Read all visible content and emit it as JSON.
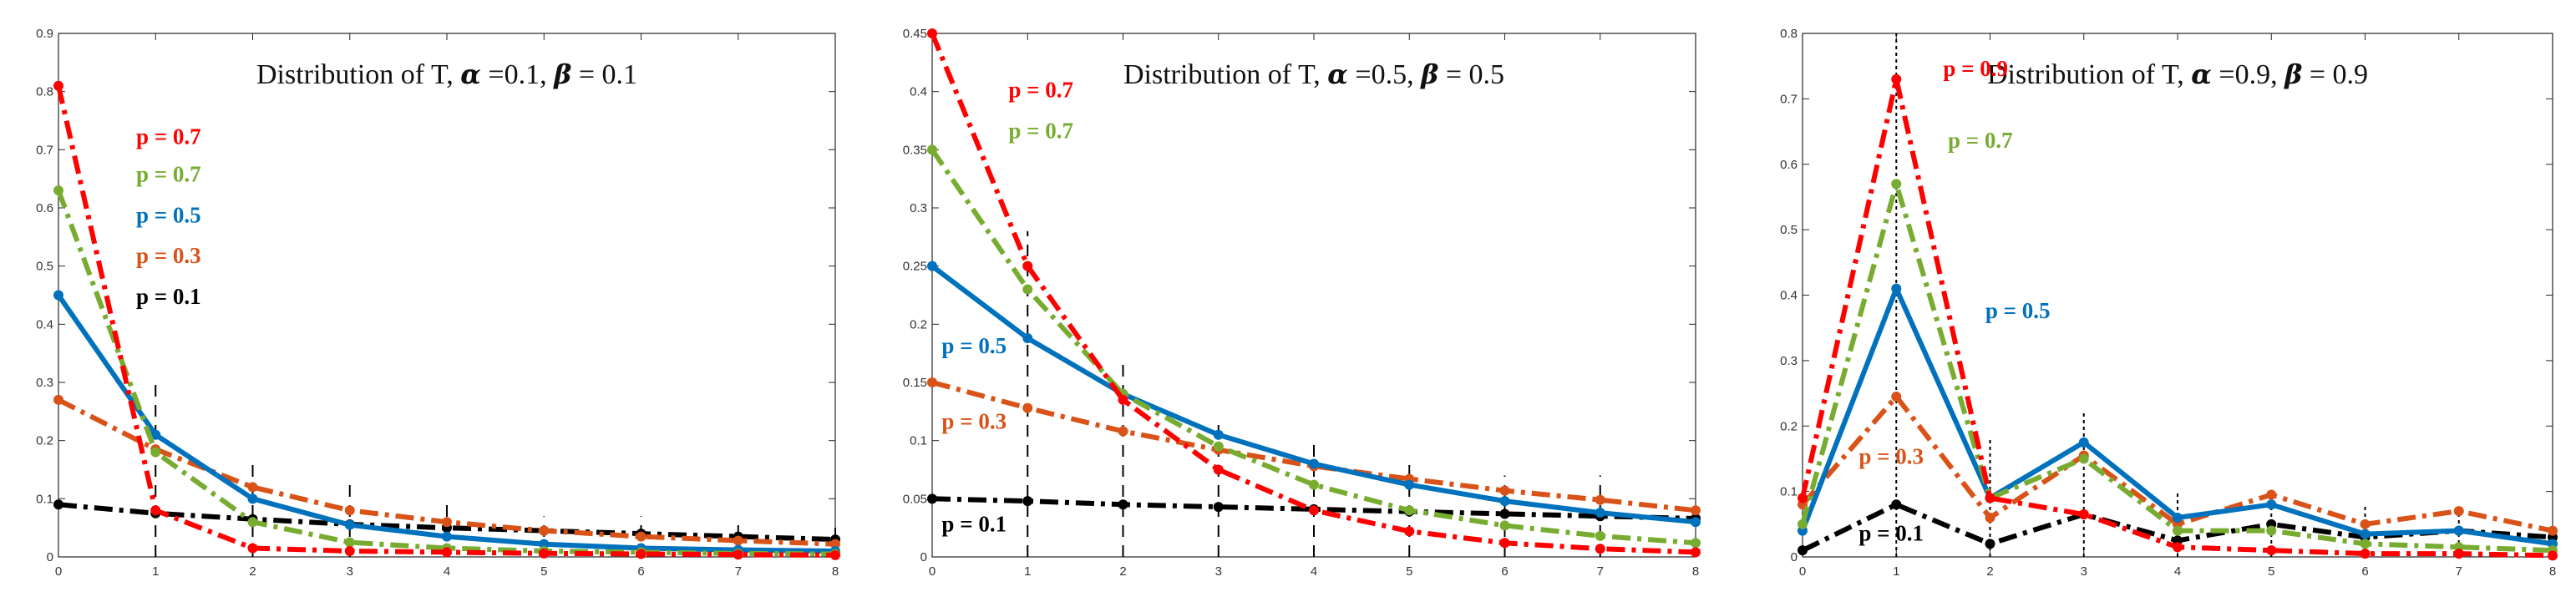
{
  "chart_data": [
    {
      "type": "line",
      "title": {
        "prefix": "Distribution of T, ",
        "alpha_symbol": "α",
        "alpha_text": " =0.1, ",
        "beta_symbol": "β",
        "beta_text": " = 0.1"
      },
      "xlabel": "",
      "ylabel": "",
      "xlim": [
        0,
        8
      ],
      "ylim": [
        0,
        0.9
      ],
      "x": [
        0,
        1,
        2,
        3,
        4,
        5,
        6,
        7,
        8
      ],
      "xticks": [
        "0",
        "1",
        "2",
        "3",
        "4",
        "5",
        "6",
        "7",
        "8"
      ],
      "yticks": [
        "0",
        "0.1",
        "0.2",
        "0.3",
        "0.4",
        "0.5",
        "0.6",
        "0.7",
        "0.8",
        "0.9"
      ],
      "ytick_values": [
        0,
        0.1,
        0.2,
        0.3,
        0.4,
        0.5,
        0.6,
        0.7,
        0.8,
        0.9
      ],
      "grid": false,
      "series": [
        {
          "name": "p = 0.1",
          "color": "#000000",
          "style": "dashdot",
          "values": [
            0.09,
            0.075,
            0.065,
            0.056,
            0.05,
            0.045,
            0.04,
            0.035,
            0.03
          ]
        },
        {
          "name": "p = 0.3",
          "color": "#D95319",
          "style": "dashdot",
          "values": [
            0.27,
            0.185,
            0.12,
            0.08,
            0.06,
            0.045,
            0.035,
            0.028,
            0.022
          ]
        },
        {
          "name": "p = 0.5",
          "color": "#0072BD",
          "style": "solid",
          "values": [
            0.45,
            0.21,
            0.1,
            0.055,
            0.035,
            0.022,
            0.015,
            0.012,
            0.01
          ]
        },
        {
          "name": "p = 0.7",
          "color": "#77AC30",
          "style": "dashdot",
          "values": [
            0.63,
            0.18,
            0.06,
            0.025,
            0.015,
            0.01,
            0.008,
            0.006,
            0.005
          ]
        },
        {
          "name": "p = 0.7",
          "color": "#FF0000",
          "style": "dashdot",
          "values": [
            0.81,
            0.08,
            0.015,
            0.01,
            0.008,
            0.006,
            0.005,
            0.004,
            0.003
          ]
        }
      ],
      "annotations": [
        {
          "text": "p = 0.7",
          "color": "#FF0000",
          "x": 0.8,
          "y": 0.71
        },
        {
          "text": "p = 0.7",
          "color": "#77AC30",
          "x": 0.8,
          "y": 0.645
        },
        {
          "text": "p = 0.5",
          "color": "#0072BD",
          "x": 0.8,
          "y": 0.575
        },
        {
          "text": "p = 0.3",
          "color": "#D95319",
          "x": 0.8,
          "y": 0.505
        },
        {
          "text": "p = 0.1",
          "color": "#000000",
          "x": 0.8,
          "y": 0.435
        }
      ],
      "stems": [
        {
          "x": 1,
          "top": 0.3
        },
        {
          "x": 2,
          "top": 0.16
        },
        {
          "x": 3,
          "top": 0.13
        },
        {
          "x": 4,
          "top": 0.1
        },
        {
          "x": 5,
          "top": 0.07
        },
        {
          "x": 6,
          "top": 0.07
        },
        {
          "x": 7,
          "top": 0.06
        },
        {
          "x": 8,
          "top": 0.05
        }
      ]
    },
    {
      "type": "line",
      "title": {
        "prefix": "Distribution of T, ",
        "alpha_symbol": "α",
        "alpha_text": " =0.5, ",
        "beta_symbol": "β",
        "beta_text": " = 0.5"
      },
      "xlabel": "",
      "ylabel": "",
      "xlim": [
        0,
        8
      ],
      "ylim": [
        0,
        0.45
      ],
      "x": [
        0,
        1,
        2,
        3,
        4,
        5,
        6,
        7,
        8
      ],
      "xticks": [
        "0",
        "1",
        "2",
        "3",
        "4",
        "5",
        "6",
        "7",
        "8"
      ],
      "yticks": [
        "0",
        "0.05",
        "0.1",
        "0.15",
        "0.2",
        "0.25",
        "0.3",
        "0.35",
        "0.4",
        "0.45"
      ],
      "ytick_values": [
        0,
        0.05,
        0.1,
        0.15,
        0.2,
        0.25,
        0.3,
        0.35,
        0.4,
        0.45
      ],
      "grid": false,
      "series": [
        {
          "name": "p = 0.1",
          "color": "#000000",
          "style": "dashdot",
          "values": [
            0.05,
            0.048,
            0.045,
            0.043,
            0.041,
            0.039,
            0.037,
            0.035,
            0.033
          ]
        },
        {
          "name": "p = 0.3",
          "color": "#D95319",
          "style": "dashdot",
          "values": [
            0.15,
            0.128,
            0.108,
            0.092,
            0.078,
            0.067,
            0.057,
            0.049,
            0.04
          ]
        },
        {
          "name": "p = 0.5",
          "color": "#0072BD",
          "style": "solid",
          "values": [
            0.25,
            0.188,
            0.14,
            0.105,
            0.08,
            0.062,
            0.048,
            0.038,
            0.03
          ]
        },
        {
          "name": "p = 0.7",
          "color": "#77AC30",
          "style": "dashdot",
          "values": [
            0.35,
            0.23,
            0.14,
            0.095,
            0.062,
            0.04,
            0.027,
            0.018,
            0.012
          ]
        },
        {
          "name": "p = 0.7",
          "color": "#FF0000",
          "style": "dashdot",
          "values": [
            0.45,
            0.25,
            0.135,
            0.075,
            0.04,
            0.022,
            0.012,
            0.007,
            0.004
          ]
        }
      ],
      "annotations": [
        {
          "text": "p = 0.7",
          "color": "#FF0000",
          "x": 0.8,
          "y": 0.395
        },
        {
          "text": "p = 0.7",
          "color": "#77AC30",
          "x": 0.8,
          "y": 0.36
        },
        {
          "text": "p = 0.5",
          "color": "#0072BD",
          "x": 0.1,
          "y": 0.175
        },
        {
          "text": "p = 0.3",
          "color": "#D95319",
          "x": 0.1,
          "y": 0.11
        },
        {
          "text": "p = 0.1",
          "color": "#000000",
          "x": 0.1,
          "y": 0.022
        }
      ],
      "stems": [
        {
          "x": 1,
          "top": 0.28
        },
        {
          "x": 2,
          "top": 0.17
        },
        {
          "x": 3,
          "top": 0.12
        },
        {
          "x": 4,
          "top": 0.1
        },
        {
          "x": 5,
          "top": 0.08
        },
        {
          "x": 6,
          "top": 0.07
        },
        {
          "x": 7,
          "top": 0.07
        }
      ]
    },
    {
      "type": "line",
      "title": {
        "prefix": "Distribution of T, ",
        "alpha_symbol": "α",
        "alpha_text": " =0.9, ",
        "beta_symbol": "β",
        "beta_text": " = 0.9"
      },
      "xlabel": "",
      "ylabel": "",
      "xlim": [
        0,
        8
      ],
      "ylim": [
        0,
        0.8
      ],
      "x": [
        0,
        1,
        2,
        3,
        4,
        5,
        6,
        7,
        8
      ],
      "xticks": [
        "0",
        "1",
        "2",
        "3",
        "4",
        "5",
        "6",
        "7",
        "8"
      ],
      "yticks": [
        "0",
        "0.1",
        "0.2",
        "0.3",
        "0.4",
        "0.5",
        "0.6",
        "0.7",
        "0.8"
      ],
      "ytick_values": [
        0,
        0.1,
        0.2,
        0.3,
        0.4,
        0.5,
        0.6,
        0.7,
        0.8
      ],
      "grid": false,
      "series": [
        {
          "name": "p = 0.1",
          "color": "#000000",
          "style": "dashdot",
          "values": [
            0.01,
            0.08,
            0.02,
            0.065,
            0.025,
            0.05,
            0.03,
            0.04,
            0.03
          ]
        },
        {
          "name": "p = 0.3",
          "color": "#D95319",
          "style": "dashdot",
          "values": [
            0.08,
            0.245,
            0.06,
            0.155,
            0.05,
            0.095,
            0.05,
            0.07,
            0.04
          ]
        },
        {
          "name": "p = 0.5",
          "color": "#0072BD",
          "style": "solid",
          "values": [
            0.04,
            0.41,
            0.09,
            0.175,
            0.06,
            0.08,
            0.035,
            0.04,
            0.02
          ]
        },
        {
          "name": "p = 0.7",
          "color": "#77AC30",
          "style": "dashdot",
          "values": [
            0.05,
            0.57,
            0.09,
            0.15,
            0.04,
            0.04,
            0.02,
            0.015,
            0.01
          ]
        },
        {
          "name": "p = 0.9",
          "color": "#FF0000",
          "style": "dashdot",
          "values": [
            0.09,
            0.73,
            0.09,
            0.065,
            0.015,
            0.01,
            0.005,
            0.005,
            0.002
          ]
        }
      ],
      "annotations": [
        {
          "text": "p = 0.9",
          "color": "#FF0000",
          "x": 1.5,
          "y": 0.735
        },
        {
          "text": "p = 0.7",
          "color": "#77AC30",
          "x": 1.55,
          "y": 0.625
        },
        {
          "text": "p = 0.5",
          "color": "#0072BD",
          "x": 1.95,
          "y": 0.365
        },
        {
          "text": "p = 0.3",
          "color": "#D95319",
          "x": 0.6,
          "y": 0.142
        },
        {
          "text": "p = 0.1",
          "color": "#000000",
          "x": 0.6,
          "y": 0.025
        }
      ],
      "stems": [
        {
          "x": 1,
          "top": 0.8
        },
        {
          "x": 2,
          "top": 0.18
        },
        {
          "x": 3,
          "top": 0.22
        },
        {
          "x": 4,
          "top": 0.1
        },
        {
          "x": 5,
          "top": 0.1
        },
        {
          "x": 6,
          "top": 0.08
        },
        {
          "x": 7,
          "top": 0.08
        }
      ]
    }
  ]
}
